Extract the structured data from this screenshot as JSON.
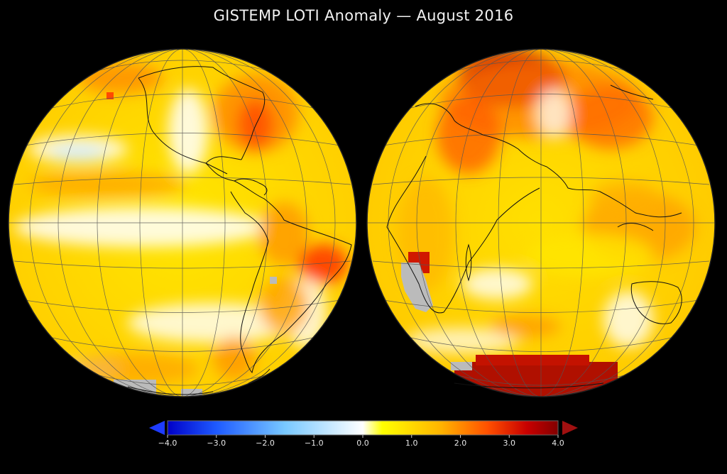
{
  "title": "GISTEMP LOTI Anomaly — August 2016",
  "globes": [
    {
      "name": "western-hemisphere",
      "view": "Americas and Pacific"
    },
    {
      "name": "eastern-hemisphere",
      "view": "Africa, Europe, Asia and Indian Ocean"
    }
  ],
  "colorbar": {
    "min": -4.0,
    "max": 4.0,
    "ticks": [
      "−4.0",
      "−3.0",
      "−2.0",
      "−1.0",
      "0.0",
      "1.0",
      "2.0",
      "3.0",
      "4.0"
    ],
    "colors": [
      "#0000c8",
      "#1e5aff",
      "#78c8ff",
      "#ffffff",
      "#ffff00",
      "#ffb400",
      "#ff5000",
      "#c80000",
      "#820000"
    ],
    "under_color": "#1e3cff",
    "over_color": "#a01010",
    "no_data_color": "#bbbbbb"
  }
}
